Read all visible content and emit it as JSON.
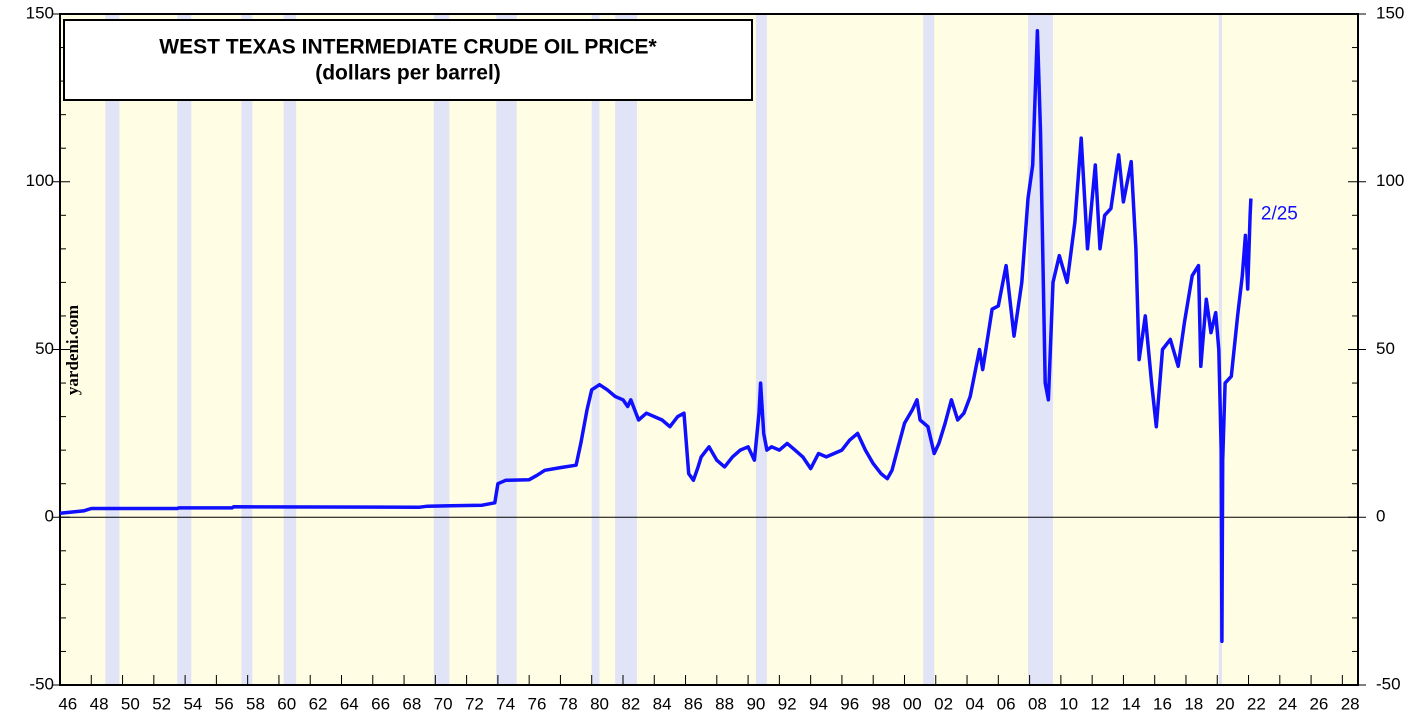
{
  "chart_data": {
    "type": "line",
    "title": "WEST TEXAS INTERMEDIATE CRUDE OIL PRICE*",
    "subtitle": "(dollars per barrel)",
    "source": "yardeni.com",
    "annotation": "2/25",
    "background": "#fffde3",
    "recession_color": "#e1e3f7",
    "recessions": [
      [
        1948.9,
        1949.8
      ],
      [
        1953.5,
        1954.4
      ],
      [
        1957.6,
        1958.3
      ],
      [
        1960.3,
        1961.1
      ],
      [
        1969.9,
        1970.9
      ],
      [
        1973.9,
        1975.2
      ],
      [
        1980.0,
        1980.5
      ],
      [
        1981.5,
        1982.9
      ],
      [
        1990.5,
        1991.2
      ],
      [
        2001.2,
        2001.9
      ],
      [
        2007.9,
        2009.5
      ],
      [
        2020.1,
        2020.3
      ]
    ],
    "xlim": [
      1946,
      2029
    ],
    "xticks": [
      {
        "value": 1946,
        "label": "46"
      },
      {
        "value": 1948,
        "label": "48"
      },
      {
        "value": 1950,
        "label": "50"
      },
      {
        "value": 1952,
        "label": "52"
      },
      {
        "value": 1954,
        "label": "54"
      },
      {
        "value": 1956,
        "label": "56"
      },
      {
        "value": 1958,
        "label": "58"
      },
      {
        "value": 1960,
        "label": "60"
      },
      {
        "value": 1962,
        "label": "62"
      },
      {
        "value": 1964,
        "label": "64"
      },
      {
        "value": 1966,
        "label": "66"
      },
      {
        "value": 1968,
        "label": "68"
      },
      {
        "value": 1970,
        "label": "70"
      },
      {
        "value": 1972,
        "label": "72"
      },
      {
        "value": 1974,
        "label": "74"
      },
      {
        "value": 1976,
        "label": "76"
      },
      {
        "value": 1978,
        "label": "78"
      },
      {
        "value": 1980,
        "label": "80"
      },
      {
        "value": 1982,
        "label": "82"
      },
      {
        "value": 1984,
        "label": "84"
      },
      {
        "value": 1986,
        "label": "86"
      },
      {
        "value": 1988,
        "label": "88"
      },
      {
        "value": 1990,
        "label": "90"
      },
      {
        "value": 1992,
        "label": "92"
      },
      {
        "value": 1994,
        "label": "94"
      },
      {
        "value": 1996,
        "label": "96"
      },
      {
        "value": 1998,
        "label": "98"
      },
      {
        "value": 2000,
        "label": "00"
      },
      {
        "value": 2002,
        "label": "02"
      },
      {
        "value": 2004,
        "label": "04"
      },
      {
        "value": 2006,
        "label": "06"
      },
      {
        "value": 2008,
        "label": "08"
      },
      {
        "value": 2010,
        "label": "10"
      },
      {
        "value": 2012,
        "label": "12"
      },
      {
        "value": 2014,
        "label": "14"
      },
      {
        "value": 2016,
        "label": "16"
      },
      {
        "value": 2018,
        "label": "18"
      },
      {
        "value": 2020,
        "label": "20"
      },
      {
        "value": 2022,
        "label": "22"
      },
      {
        "value": 2024,
        "label": "24"
      },
      {
        "value": 2026,
        "label": "26"
      },
      {
        "value": 2028,
        "label": "28"
      }
    ],
    "ylim": [
      -50,
      150
    ],
    "yticks": [
      -50,
      0,
      50,
      100,
      150
    ],
    "y2lim": [
      -50,
      150
    ],
    "y2ticks": [
      -50,
      0,
      50,
      100,
      150
    ],
    "yminorticks": [
      -40,
      -30,
      -20,
      -10,
      10,
      20,
      30,
      40,
      60,
      70,
      80,
      90,
      110,
      120,
      130,
      140
    ],
    "series": [
      {
        "color": "#1010ff",
        "x": [
          1946.0,
          1947.5,
          1948.0,
          1953.5,
          1953.6,
          1957.0,
          1957.1,
          1969.0,
          1969.5,
          1971.0,
          1973.0,
          1973.8,
          1974.0,
          1974.5,
          1976.0,
          1976.5,
          1977.0,
          1978.0,
          1979.0,
          1979.3,
          1979.7,
          1980.0,
          1980.5,
          1981.0,
          1981.5,
          1982.0,
          1982.3,
          1982.5,
          1983.0,
          1983.5,
          1984.0,
          1984.5,
          1985.0,
          1985.5,
          1985.9,
          1986.2,
          1986.5,
          1986.8,
          1987.0,
          1987.5,
          1988.0,
          1988.5,
          1989.0,
          1989.5,
          1990.0,
          1990.4,
          1990.7,
          1990.8,
          1991.0,
          1991.2,
          1991.5,
          1992.0,
          1992.5,
          1993.0,
          1993.5,
          1994.0,
          1994.5,
          1995.0,
          1996.0,
          1996.5,
          1997.0,
          1997.5,
          1998.0,
          1998.5,
          1998.9,
          1999.2,
          1999.6,
          2000.0,
          2000.5,
          2000.8,
          2001.0,
          2001.5,
          2001.9,
          2002.2,
          2002.6,
          2003.0,
          2003.4,
          2003.8,
          2004.2,
          2004.8,
          2005.0,
          2005.6,
          2006.0,
          2006.5,
          2007.0,
          2007.5,
          2007.9,
          2008.2,
          2008.5,
          2008.7,
          2009.0,
          2009.2,
          2009.5,
          2009.9,
          2010.4,
          2010.9,
          2011.3,
          2011.7,
          2012.2,
          2012.5,
          2012.8,
          2013.2,
          2013.7,
          2014.0,
          2014.5,
          2014.8,
          2015.0,
          2015.4,
          2015.8,
          2016.1,
          2016.5,
          2017.0,
          2017.5,
          2017.9,
          2018.4,
          2018.8,
          2018.95,
          2019.3,
          2019.6,
          2019.9,
          2020.1,
          2020.25,
          2020.3,
          2020.35,
          2020.5,
          2020.9,
          2021.3,
          2021.6,
          2021.8,
          2021.95,
          2022.1,
          2022.15
        ],
        "values": [
          1.2,
          1.9,
          2.6,
          2.6,
          2.8,
          2.8,
          3.1,
          3.0,
          3.3,
          3.4,
          3.6,
          4.3,
          10,
          11,
          11.2,
          12.5,
          14,
          14.8,
          15.5,
          22,
          32,
          38,
          39.5,
          38,
          36,
          35,
          33,
          35,
          29,
          31,
          30,
          29,
          27,
          30,
          31,
          13,
          11,
          15,
          18,
          21,
          17,
          15,
          18,
          20,
          21,
          17,
          31,
          40,
          25,
          20,
          21,
          20,
          22,
          20,
          18,
          14.5,
          19,
          18,
          20,
          23,
          25,
          20,
          16,
          13,
          11.5,
          14,
          21,
          28,
          32,
          35,
          29,
          27,
          19,
          22,
          28,
          35,
          29,
          31,
          36,
          50,
          44,
          62,
          63,
          75,
          54,
          70,
          95,
          105,
          145,
          115,
          40,
          35,
          70,
          78,
          70,
          88,
          113,
          80,
          105,
          80,
          90,
          92,
          108,
          94,
          106,
          80,
          47,
          60,
          40,
          27,
          50,
          53,
          45,
          58,
          72,
          75,
          45,
          65,
          55,
          61,
          50,
          20,
          -37,
          17,
          40,
          42,
          60,
          72,
          84,
          68,
          90,
          95
        ]
      }
    ]
  }
}
